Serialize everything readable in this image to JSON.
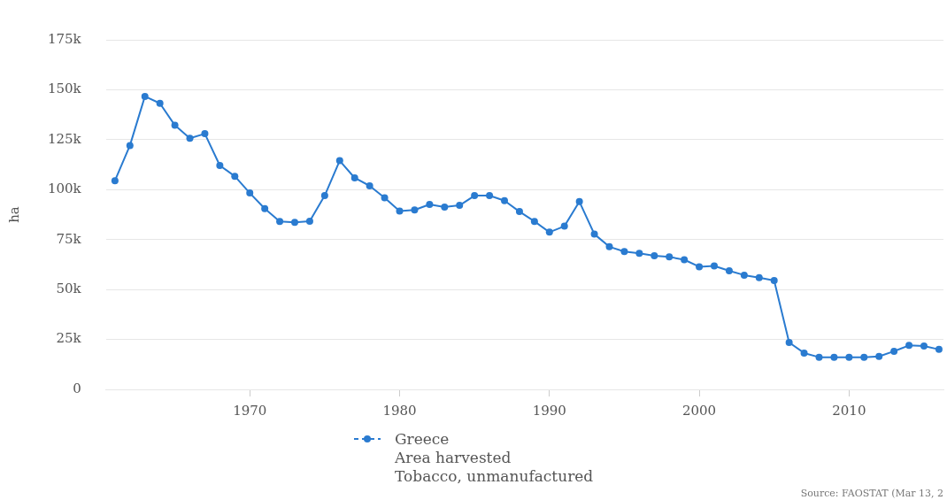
{
  "chart_data": {
    "type": "line",
    "ylabel": "ha",
    "x": [
      1961,
      1962,
      1963,
      1964,
      1965,
      1966,
      1967,
      1968,
      1969,
      1970,
      1971,
      1972,
      1973,
      1974,
      1975,
      1976,
      1977,
      1978,
      1979,
      1980,
      1981,
      1982,
      1983,
      1984,
      1985,
      1986,
      1987,
      1988,
      1989,
      1990,
      1991,
      1992,
      1993,
      1994,
      1995,
      1996,
      1997,
      1998,
      1999,
      2000,
      2001,
      2002,
      2003,
      2004,
      2005,
      2006,
      2007,
      2008,
      2009,
      2010,
      2011,
      2012,
      2013,
      2014,
      2015,
      2016
    ],
    "series": [
      {
        "name": "Greece\nArea harvested\nTobacco, unmanufactured",
        "color": "#2a7bd0",
        "values": [
          104500,
          122100,
          146700,
          143200,
          132200,
          125700,
          128000,
          112100,
          106700,
          98300,
          90500,
          84100,
          83600,
          84200,
          97000,
          114500,
          105900,
          101900,
          95900,
          89300,
          89800,
          92600,
          91300,
          92100,
          97000,
          97000,
          94500,
          89000,
          84100,
          78700,
          81700,
          94000,
          77700,
          71400,
          69000,
          68100,
          66900,
          66300,
          64900,
          61400,
          61800,
          59400,
          57200,
          55900,
          54500,
          23500,
          18200,
          16100,
          16100,
          16100,
          16100,
          16500,
          19100,
          22000,
          21700,
          20000
        ]
      }
    ],
    "xlim": [
      1960.4,
      2016.3
    ],
    "xticks": [
      1970,
      1980,
      1990,
      2000,
      2010
    ],
    "ylim": [
      0,
      175000
    ],
    "yticks": [
      0,
      {
        "value": 25000,
        "label": "25k"
      },
      {
        "value": 50000,
        "label": "50k"
      },
      {
        "value": 75000,
        "label": "75k"
      },
      {
        "value": 100000,
        "label": "100k"
      },
      {
        "value": 125000,
        "label": "125k"
      },
      {
        "value": 150000,
        "label": "150k"
      },
      {
        "value": 175000,
        "label": "175k"
      }
    ],
    "grid": "y",
    "legend": "bottom",
    "marker": "circle",
    "line_style": "solid",
    "annotations": [
      "Source: FAOSTAT (Mar 13, 2"
    ]
  }
}
